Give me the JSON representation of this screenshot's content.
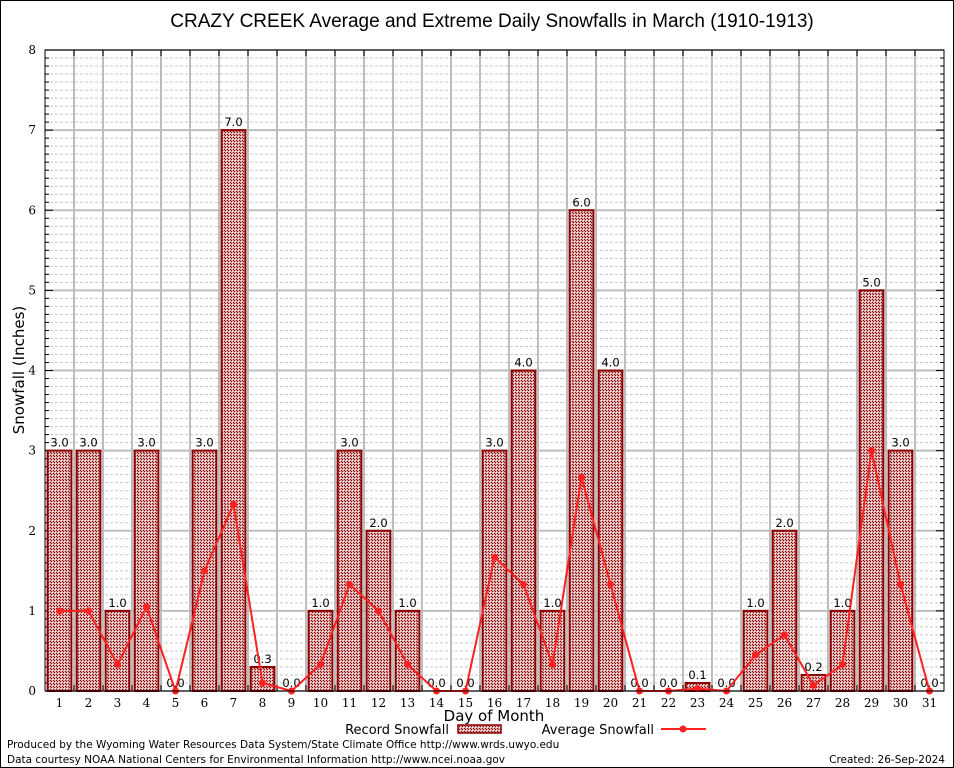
{
  "chart_data": {
    "type": "bar",
    "title": "CRAZY CREEK Average and Extreme Daily Snowfalls in March (1910-1913)",
    "xlabel": "Day of Month",
    "ylabel": "Snowfall (Inches)",
    "ylim": [
      0,
      8
    ],
    "yticks": [
      "0",
      "1",
      "2",
      "3",
      "4",
      "5",
      "6",
      "7",
      "8"
    ],
    "grid": true,
    "categories": [
      "1",
      "2",
      "3",
      "4",
      "5",
      "6",
      "7",
      "8",
      "9",
      "10",
      "11",
      "12",
      "13",
      "14",
      "15",
      "16",
      "17",
      "18",
      "19",
      "20",
      "21",
      "22",
      "23",
      "24",
      "25",
      "26",
      "27",
      "28",
      "29",
      "30",
      "31"
    ],
    "series": [
      {
        "name": "Record Snowfall",
        "type": "bar",
        "color": "#8b0000",
        "values": [
          3.0,
          3.0,
          1.0,
          3.0,
          0.0,
          3.0,
          7.0,
          0.3,
          0.0,
          1.0,
          3.0,
          2.0,
          1.0,
          0.0,
          0.0,
          3.0,
          4.0,
          1.0,
          6.0,
          4.0,
          0.0,
          0.0,
          0.1,
          0.0,
          1.0,
          2.0,
          0.2,
          1.0,
          5.0,
          3.0,
          0.0
        ],
        "labels": [
          "3.0",
          "3.0",
          "1.0",
          "3.0",
          "0.0",
          "3.0",
          "7.0",
          "0.3",
          "0.0",
          "1.0",
          "3.0",
          "2.0",
          "1.0",
          "0.0",
          "0.0",
          "3.0",
          "4.0",
          "1.0",
          "6.0",
          "4.0",
          "0.0",
          "0.0",
          "0.1",
          "0.0",
          "1.0",
          "2.0",
          "0.2",
          "1.0",
          "5.0",
          "3.0",
          "0.0"
        ]
      },
      {
        "name": "Average Snowfall",
        "type": "line",
        "color": "#ff2020",
        "values": [
          1.0,
          1.0,
          0.33,
          1.05,
          0.0,
          1.5,
          2.33,
          0.1,
          0.0,
          0.33,
          1.33,
          1.0,
          0.33,
          0.0,
          0.0,
          1.67,
          1.33,
          0.33,
          2.67,
          1.33,
          0.0,
          0.0,
          0.03,
          0.0,
          0.45,
          0.7,
          0.07,
          0.33,
          3.0,
          1.33,
          0.0
        ]
      }
    ],
    "legend": {
      "placement": "bottom-center",
      "entries": [
        "Record Snowfall",
        "Average Snowfall"
      ]
    },
    "footer": {
      "line1": "Produced by the Wyoming Water Resources Data System/State Climate Office http://www.wrds.uwyo.edu",
      "line2": "Data courtesy NOAA National Centers for Environmental Information http://www.ncei.noaa.gov",
      "created": "Created: 26-Sep-2024"
    }
  }
}
